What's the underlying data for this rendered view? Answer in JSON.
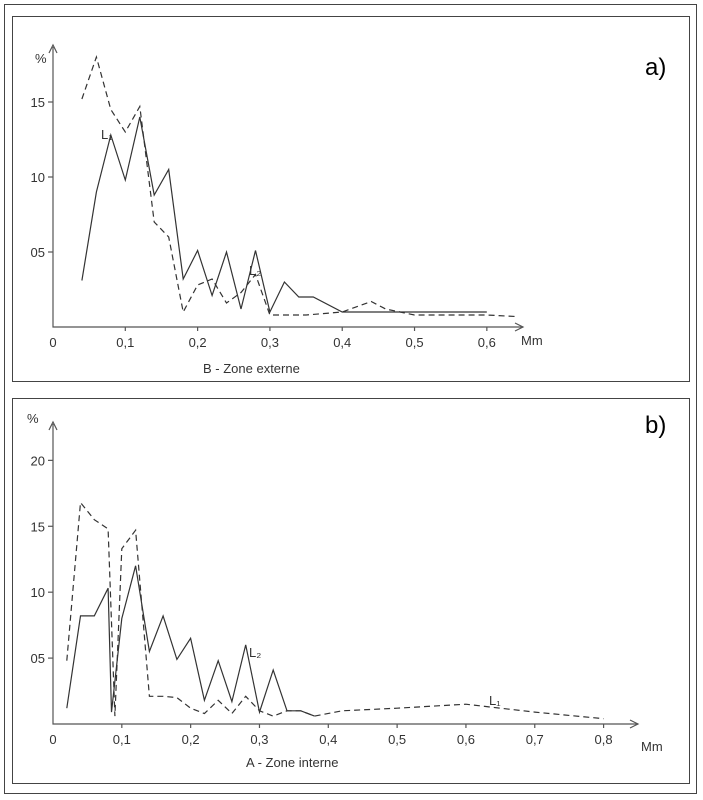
{
  "chart_data": [
    {
      "type": "line",
      "panel_label": "a)",
      "caption": "B - Zone externe",
      "xlabel": "Mm",
      "ylabel": "%",
      "x_ticks": [
        "0",
        "0,1",
        "0,2",
        "0,3",
        "0,4",
        "0,5",
        "0,6"
      ],
      "y_ticks": [
        "05",
        "10",
        "15"
      ],
      "xlim": [
        0,
        0.65
      ],
      "ylim": [
        0,
        18
      ],
      "series": [
        {
          "name": "L₁",
          "style": "dashed",
          "x": [
            0.04,
            0.06,
            0.08,
            0.1,
            0.12,
            0.14,
            0.16,
            0.18,
            0.2,
            0.22,
            0.24,
            0.26,
            0.28,
            0.3,
            0.35,
            0.4,
            0.44,
            0.46,
            0.5,
            0.6,
            0.64
          ],
          "y": [
            15.2,
            18.0,
            14.5,
            13.0,
            14.7,
            7.0,
            6.0,
            1.0,
            2.8,
            3.2,
            1.6,
            2.3,
            3.5,
            0.8,
            0.8,
            1.0,
            1.7,
            1.2,
            0.8,
            0.8,
            0.7
          ]
        },
        {
          "name": "L₂",
          "style": "solid",
          "x": [
            0.04,
            0.06,
            0.08,
            0.1,
            0.12,
            0.14,
            0.16,
            0.18,
            0.2,
            0.22,
            0.24,
            0.26,
            0.28,
            0.3,
            0.32,
            0.34,
            0.36,
            0.4,
            0.45,
            0.5,
            0.55,
            0.6
          ],
          "y": [
            3.1,
            9.0,
            12.8,
            9.8,
            14.0,
            8.8,
            10.5,
            3.2,
            5.1,
            2.1,
            5.0,
            1.2,
            5.1,
            1.0,
            3.0,
            2.0,
            2.0,
            1.0,
            1.0,
            1.0,
            1.0,
            1.0
          ]
        }
      ],
      "series_labels": [
        "L₁",
        "L₂"
      ]
    },
    {
      "type": "line",
      "panel_label": "b)",
      "caption": "A - Zone interne",
      "xlabel": "Mm",
      "ylabel": "%",
      "x_ticks": [
        "0",
        "0,1",
        "0,2",
        "0,3",
        "0,4",
        "0,5",
        "0,6",
        "0,7",
        "0,8"
      ],
      "y_ticks": [
        "05",
        "10",
        "15",
        "20"
      ],
      "xlim": [
        0,
        0.85
      ],
      "ylim": [
        0,
        22
      ],
      "series": [
        {
          "name": "L₁",
          "style": "dashed",
          "x": [
            0.02,
            0.04,
            0.06,
            0.08,
            0.09,
            0.1,
            0.12,
            0.14,
            0.16,
            0.18,
            0.2,
            0.22,
            0.24,
            0.26,
            0.28,
            0.3,
            0.32,
            0.34,
            0.36,
            0.38,
            0.42,
            0.5,
            0.6,
            0.65,
            0.7,
            0.8
          ],
          "y": [
            4.8,
            16.8,
            15.5,
            14.8,
            0.6,
            13.3,
            14.7,
            2.1,
            2.1,
            2.0,
            1.2,
            0.8,
            1.8,
            0.8,
            2.1,
            1.0,
            0.6,
            1.0,
            1.0,
            0.6,
            1.0,
            1.2,
            1.5,
            1.2,
            0.9,
            0.4
          ]
        },
        {
          "name": "L₂",
          "style": "solid",
          "x": [
            0.02,
            0.04,
            0.06,
            0.08,
            0.085,
            0.1,
            0.12,
            0.14,
            0.16,
            0.18,
            0.2,
            0.22,
            0.24,
            0.26,
            0.28,
            0.3,
            0.32,
            0.34,
            0.36,
            0.38
          ],
          "y": [
            1.2,
            8.2,
            8.2,
            10.3,
            0.9,
            8.0,
            12.0,
            5.5,
            8.2,
            4.9,
            6.5,
            1.8,
            4.8,
            1.7,
            6.0,
            0.9,
            4.1,
            1.0,
            1.0,
            0.6
          ]
        }
      ],
      "series_labels": [
        "L₁",
        "L₂"
      ]
    }
  ]
}
